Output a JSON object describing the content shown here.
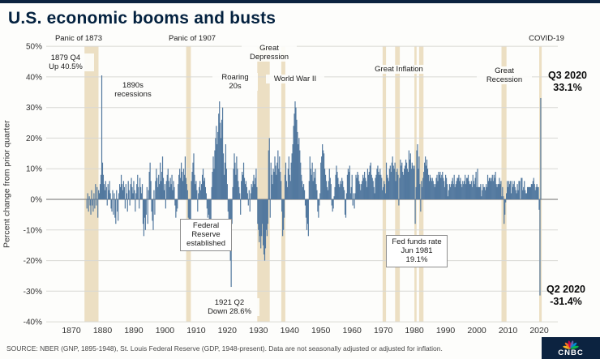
{
  "header": {
    "title": "U.S. economic booms and busts"
  },
  "annotations": {
    "panic_1873": "Panic of 1873",
    "peak_1879": "1879 Q4\nUp 40.5%",
    "recessions_1890s": "1890s\nrecessions",
    "panic_1907": "Panic of 1907",
    "roaring_20s": "Roaring\n20s",
    "great_depression": "Great\nDepression",
    "wwii": "World War II",
    "great_inflation": "Great Inflation",
    "great_recession": "Great\nRecession",
    "covid": "COVID-19",
    "fed_established": "Federal\nReserve\nestablished",
    "trough_1921": "1921 Q2\nDown 28.6%",
    "fed_funds": "Fed funds rate\nJun 1981\n19.1%",
    "q3_2020": "Q3 2020\n33.1%",
    "q2_2020": "Q2 2020\n-31.4%"
  },
  "footer": {
    "source": "SOURCE: NBER (GNP, 1895-1948), St. Louis Federal Reserve (GDP, 1948-present). Data are not seasonally adjusted or adjusted for inflation.",
    "logo_text": "CNBC"
  },
  "colors": {
    "accent_navy": "#0c2340",
    "bar": "#53799f",
    "band": "#ecdfc3",
    "peacock": [
      "#f5b323",
      "#f37021",
      "#cc004c",
      "#6460aa",
      "#0089d0",
      "#0db14b"
    ]
  },
  "chart_data": {
    "type": "bar",
    "title": "U.S. economic booms and busts",
    "xlabel": "",
    "ylabel": "Percent change from prior quarter",
    "ylim": [
      -40,
      50
    ],
    "grid": true,
    "ytick_labels": [
      "50%",
      "40%",
      "30%",
      "20%",
      "10%",
      "0%",
      "-10%",
      "-20%",
      "-30%",
      "-40%"
    ],
    "ytick_values": [
      50,
      40,
      30,
      20,
      10,
      0,
      -10,
      -20,
      -30,
      -40
    ],
    "xticks": [
      1870,
      1880,
      1890,
      1900,
      1910,
      1920,
      1930,
      1940,
      1950,
      1960,
      1970,
      1980,
      1990,
      2000,
      2010,
      2020
    ],
    "frequency": "quarterly",
    "x_start": 1875.0,
    "x_step": 0.25,
    "bar_color": "#53799f",
    "band_color": "#ecdfc3",
    "bands": [
      {
        "label": "Panic of 1873",
        "x0": 1874.2,
        "x1": 1878.7
      },
      {
        "label": "Panic of 1907",
        "x0": 1906.8,
        "x1": 1908.3
      },
      {
        "label": "Great Depression",
        "x0": 1929.6,
        "x1": 1933.6
      },
      {
        "label": "Great Depression",
        "x0": 1937.3,
        "x1": 1938.6
      },
      {
        "label": "Great Inflation",
        "x0": 1969.8,
        "x1": 1970.9
      },
      {
        "label": "Great Inflation",
        "x0": 1973.8,
        "x1": 1975.3
      },
      {
        "label": "Great Inflation",
        "x0": 1980.0,
        "x1": 1980.7
      },
      {
        "label": "Great Inflation",
        "x0": 1981.5,
        "x1": 1982.9
      },
      {
        "label": "Great Recession",
        "x0": 2007.9,
        "x1": 2009.5
      },
      {
        "label": "COVID-19",
        "x0": 2020.0,
        "x1": 2020.8
      }
    ],
    "annotated_points": [
      {
        "label": "1879 Q4",
        "value": 40.5
      },
      {
        "label": "1921 Q2",
        "value": -28.6
      },
      {
        "label": "Fed funds rate Jun 1981",
        "value": 19.1
      },
      {
        "label": "Q2 2020",
        "value": -31.4
      },
      {
        "label": "Q3 2020",
        "value": 33.1
      }
    ],
    "values": [
      -3,
      2,
      -4,
      1,
      -2,
      -5,
      3,
      -2,
      -4,
      2,
      -3,
      5,
      -2,
      4,
      -6,
      3,
      2,
      5,
      8,
      40.5,
      12,
      8,
      5,
      3,
      6,
      4,
      -2,
      5,
      3,
      6,
      2,
      -3,
      -4,
      3,
      -5,
      2,
      -6,
      -8,
      3,
      -4,
      -7,
      2,
      5,
      4,
      8,
      5,
      3,
      6,
      4,
      -3,
      5,
      2,
      -4,
      6,
      3,
      -2,
      5,
      7,
      4,
      2,
      6,
      3,
      -4,
      2,
      5,
      8,
      4,
      -3,
      7,
      4,
      2,
      5,
      -8,
      -12,
      -6,
      -10,
      -5,
      4,
      -8,
      3,
      9,
      12,
      6,
      -4,
      -7,
      -10,
      3,
      -5,
      6,
      10,
      7,
      4,
      8,
      5,
      12,
      6,
      9,
      14,
      7,
      3,
      5,
      -3,
      6,
      8,
      10,
      6,
      4,
      7,
      5,
      8,
      3,
      6,
      4,
      -2,
      -6,
      -4,
      -3,
      5,
      8,
      10,
      7,
      12,
      9,
      6,
      10,
      8,
      14,
      7,
      5,
      3,
      -6,
      -13,
      -10,
      -8,
      6,
      9,
      12,
      15,
      8,
      5,
      6,
      3,
      -4,
      2,
      4,
      6,
      3,
      5,
      8,
      10,
      6,
      7,
      4,
      2,
      -3,
      -6,
      -5,
      -8,
      -12,
      -7,
      4,
      9,
      14,
      10,
      16,
      20,
      24,
      18,
      22,
      28,
      32,
      25,
      20,
      26,
      30,
      15,
      8,
      12,
      18,
      10,
      5,
      -4,
      -10,
      -16,
      -20,
      -28.6,
      -8,
      4,
      10,
      15,
      12,
      8,
      14,
      10,
      6,
      4,
      2,
      -5,
      6,
      9,
      8,
      12,
      7,
      5,
      6,
      4,
      2,
      -2,
      3,
      -4,
      2,
      5,
      4,
      6,
      8,
      5,
      7,
      10,
      4,
      -8,
      -10,
      -14,
      -12,
      -16,
      -12,
      -8,
      -15,
      -18,
      -20,
      -16,
      -10,
      -12,
      -8,
      16,
      20,
      -6,
      12,
      8,
      5,
      10,
      9,
      14,
      11,
      8,
      12,
      16,
      10,
      14,
      9,
      6,
      -4,
      -12,
      -10,
      -6,
      8,
      12,
      6,
      4,
      10,
      14,
      8,
      6,
      12,
      15,
      18,
      24,
      28,
      32,
      30,
      26,
      22,
      18,
      20,
      16,
      12,
      8,
      6,
      4,
      5,
      3,
      -2,
      -6,
      -10,
      -8,
      -12,
      6,
      14,
      10,
      8,
      12,
      6,
      9,
      7,
      10,
      5,
      3,
      -4,
      -6,
      -2,
      2,
      12,
      14,
      18,
      16,
      15,
      10,
      8,
      6,
      4,
      3,
      6,
      10,
      7,
      5,
      -2,
      -4,
      -3,
      1,
      4,
      8,
      11,
      9,
      7,
      5,
      4,
      6,
      5,
      7,
      6,
      4,
      3,
      -5,
      -6,
      2,
      8,
      10,
      9,
      11,
      2,
      4,
      8,
      -2,
      2,
      -3,
      2,
      8,
      7,
      9,
      8,
      6,
      5,
      3,
      5,
      6,
      8,
      7,
      9,
      7,
      6,
      4,
      10,
      8,
      9,
      11,
      12,
      8,
      7,
      6,
      4,
      2,
      7,
      8,
      10,
      11,
      9,
      8,
      10,
      8,
      7,
      3,
      4,
      6,
      5,
      2,
      12,
      8,
      7,
      6,
      10,
      11,
      9,
      12,
      14,
      11,
      10,
      12,
      6,
      9,
      10,
      8,
      -2,
      7,
      13,
      11,
      12,
      9,
      8,
      10,
      11,
      13,
      12,
      10,
      9,
      16,
      13,
      15,
      10,
      12,
      11,
      10,
      11,
      -8,
      4,
      16,
      18,
      10,
      14,
      5,
      -4,
      6,
      4,
      7,
      9,
      12,
      14,
      11,
      13,
      10,
      8,
      6,
      8,
      7,
      6,
      7,
      6,
      5,
      4,
      5,
      7,
      8,
      6,
      9,
      8,
      9,
      7,
      8,
      9,
      7,
      6,
      4,
      8,
      7,
      5,
      1,
      3,
      5,
      4,
      5,
      6,
      7,
      5,
      8,
      4,
      5,
      6,
      7,
      7,
      8,
      6,
      7,
      5,
      4,
      6,
      5,
      6,
      8,
      5,
      7,
      7,
      8,
      6,
      5,
      5,
      6,
      4,
      8,
      6,
      5,
      7,
      9,
      4,
      10,
      4,
      4,
      4,
      5,
      1,
      3,
      5,
      4,
      4,
      3,
      5,
      4,
      8,
      6,
      7,
      7,
      6,
      7,
      8,
      6,
      8,
      7,
      9,
      5,
      4,
      5,
      5,
      7,
      5,
      6,
      1,
      4,
      1,
      -8,
      -5,
      -1,
      2,
      6,
      4,
      6,
      5,
      6,
      2,
      6,
      4,
      5,
      6,
      4,
      3,
      2,
      5,
      3,
      6,
      6,
      0,
      7,
      7,
      3,
      4,
      6,
      3,
      2,
      2,
      4,
      4,
      4,
      4,
      4,
      5,
      5,
      6,
      7,
      5,
      3,
      4,
      5,
      4,
      4,
      -3.4,
      -31.4,
      33.1
    ]
  }
}
